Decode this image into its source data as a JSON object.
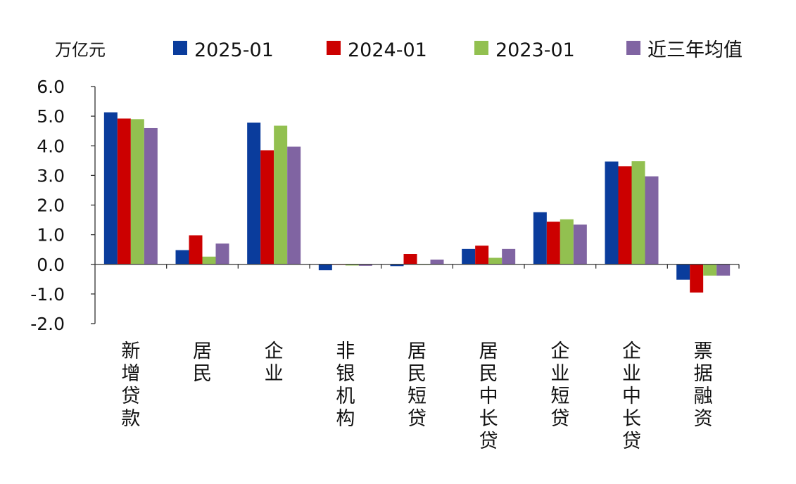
{
  "chart_data": {
    "type": "bar",
    "title": "",
    "xlabel": "",
    "ylabel": "万亿元",
    "unit": "万亿元",
    "ylim": [
      -2.0,
      6.0
    ],
    "yticks": [
      "6.0",
      "5.0",
      "4.0",
      "3.0",
      "2.0",
      "1.0",
      "0.0",
      "-1.0",
      "-2.0"
    ],
    "grid": false,
    "legend_position": "top",
    "categories": [
      "新增贷款",
      "居民",
      "企业",
      "非银机构",
      "居民短贷",
      "居民中长贷",
      "企业短贷",
      "企业中长贷",
      "票据融资"
    ],
    "series": [
      {
        "name": "2025-01",
        "color": "#0a3c9c",
        "values": [
          5.13,
          0.48,
          4.78,
          -0.2,
          -0.06,
          0.52,
          1.76,
          3.47,
          -0.52
        ]
      },
      {
        "name": "2024-01",
        "color": "#cc0000",
        "values": [
          4.92,
          0.98,
          3.85,
          -0.01,
          0.35,
          0.63,
          1.44,
          3.31,
          -0.95
        ]
      },
      {
        "name": "2023-01",
        "color": "#92c050",
        "values": [
          4.9,
          0.26,
          4.68,
          -0.04,
          -0.02,
          0.22,
          1.52,
          3.48,
          -0.38
        ]
      },
      {
        "name": "近三年均值",
        "color": "#8064a2",
        "values": [
          4.6,
          0.7,
          3.97,
          -0.05,
          0.16,
          0.52,
          1.34,
          2.97,
          -0.38
        ]
      }
    ]
  }
}
